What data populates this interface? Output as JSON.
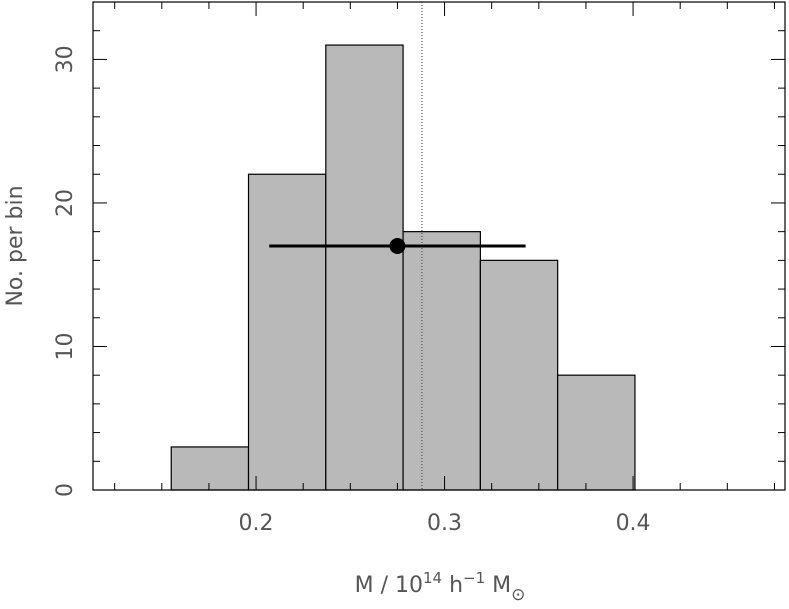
{
  "chart_data": {
    "type": "histogram",
    "bins": [
      0.155,
      0.196,
      0.237,
      0.278,
      0.319,
      0.36,
      0.401
    ],
    "counts": [
      3,
      22,
      31,
      18,
      16,
      8
    ],
    "color": "#b9b9b9",
    "xlim": [
      0.1135,
      0.4806
    ],
    "ylim": [
      0,
      34
    ],
    "xticks": [
      0.2,
      0.3,
      0.4
    ],
    "yticks": [
      0,
      10,
      20,
      30
    ],
    "xminorticks": [
      0.125,
      0.15,
      0.175,
      0.225,
      0.25,
      0.275,
      0.325,
      0.35,
      0.375,
      0.425,
      0.45,
      0.475
    ],
    "yminorticks": [
      2,
      4,
      6,
      8,
      12,
      14,
      16,
      18,
      22,
      24,
      26,
      28,
      32
    ],
    "vline": 0.288,
    "point": {
      "x": 0.275,
      "y": 17,
      "xerr": 0.068
    },
    "xlabel": [
      "M / 10",
      "14",
      " h",
      "−1",
      " M",
      "⊙"
    ],
    "ylabel": "No. per bin"
  }
}
